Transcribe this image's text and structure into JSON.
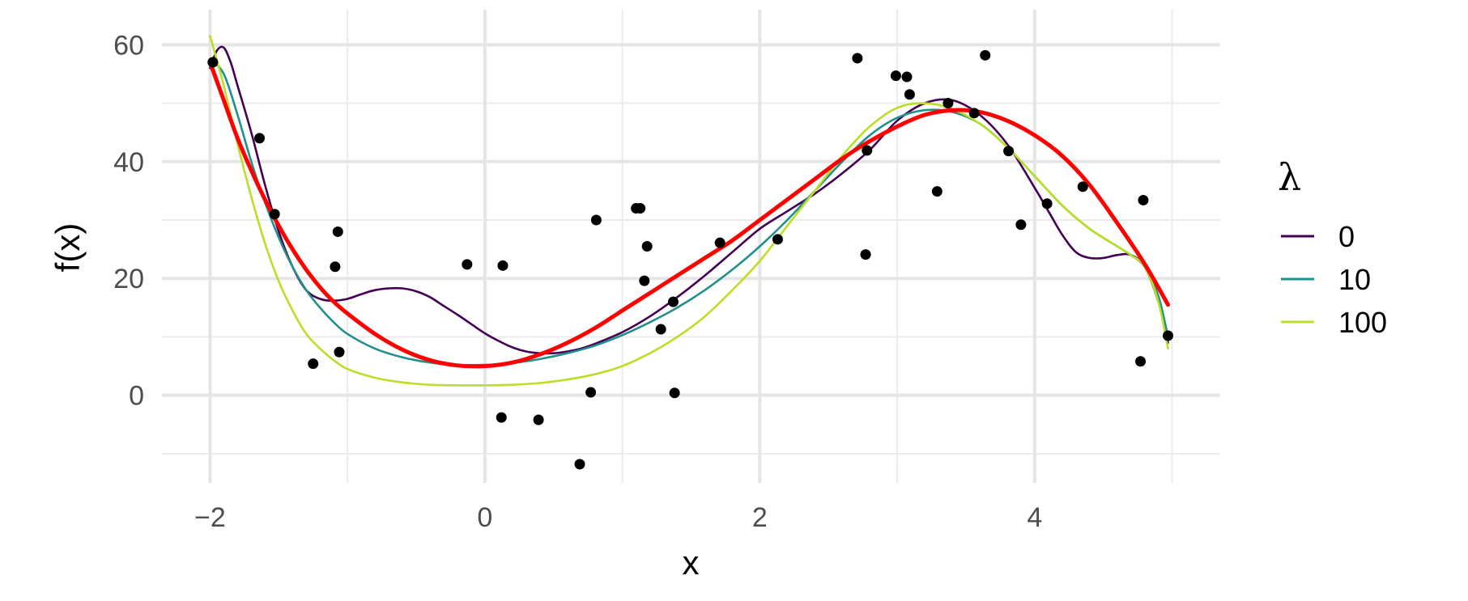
{
  "chart_data": {
    "type": "scatter",
    "title": "",
    "xlabel": "x",
    "ylabel": "f(x)",
    "xlim": [
      -2.35,
      5.35
    ],
    "ylim": [
      -15,
      66
    ],
    "x_ticks": [
      -2,
      0,
      2,
      4
    ],
    "x_tick_labels": [
      "−2",
      "0",
      "2",
      "4"
    ],
    "y_ticks": [
      0,
      20,
      40,
      60
    ],
    "y_tick_labels": [
      "0",
      "20",
      "40",
      "60"
    ],
    "grid": true,
    "legend": {
      "title": "λ",
      "placement": "right",
      "entries": [
        {
          "label": "0",
          "color": "#440154"
        },
        {
          "label": "10",
          "color": "#21908C"
        },
        {
          "label": "100",
          "color": "#BBDF27"
        }
      ]
    },
    "points": {
      "x": [
        -1.98,
        -1.64,
        -1.53,
        -1.25,
        -1.09,
        -1.07,
        -1.06,
        -0.13,
        0.12,
        0.13,
        0.39,
        0.69,
        0.77,
        0.81,
        1.1,
        1.13,
        1.16,
        1.18,
        1.28,
        1.37,
        1.38,
        1.71,
        2.13,
        2.71,
        2.77,
        2.78,
        2.99,
        3.07,
        3.09,
        3.29,
        3.37,
        3.56,
        3.64,
        3.81,
        3.9,
        4.09,
        4.35,
        4.77,
        4.79,
        4.97
      ],
      "y": [
        57,
        44,
        31,
        5.4,
        22,
        28,
        7.4,
        22.4,
        -3.8,
        22.2,
        -4.2,
        -11.8,
        0.5,
        30,
        32,
        32,
        19.6,
        25.5,
        11.3,
        16,
        0.4,
        26.1,
        26.7,
        57.7,
        24.1,
        41.9,
        54.7,
        54.5,
        51.5,
        34.9,
        50,
        48.3,
        58.2,
        41.8,
        29.2,
        32.8,
        35.7,
        5.8,
        33.4,
        10.2
      ]
    },
    "series": [
      {
        "name": "0",
        "color": "#440154",
        "x": [
          -2.0,
          -1.95,
          -1.9,
          -1.85,
          -1.8,
          -1.7,
          -1.6,
          -1.5,
          -1.4,
          -1.3,
          -1.2,
          -1.1,
          -1.0,
          -0.9,
          -0.8,
          -0.7,
          -0.6,
          -0.5,
          -0.4,
          -0.3,
          -0.2,
          -0.1,
          0.0,
          0.1,
          0.2,
          0.3,
          0.4,
          0.5,
          0.6,
          0.7,
          0.8,
          1.0,
          1.2,
          1.4,
          1.6,
          1.8,
          2.0,
          2.2,
          2.4,
          2.6,
          2.8,
          3.0,
          3.2,
          3.4,
          3.6,
          3.8,
          4.0,
          4.1,
          4.2,
          4.3,
          4.4,
          4.5,
          4.6,
          4.7,
          4.8,
          4.9,
          4.97
        ],
        "y": [
          56,
          59,
          59.5,
          57,
          53,
          45,
          36,
          28,
          22,
          18,
          16.5,
          16.2,
          16.5,
          17.3,
          18,
          18.3,
          18.3,
          17.8,
          16.8,
          15.3,
          13.8,
          12.2,
          10.6,
          9.3,
          8.2,
          7.5,
          7.2,
          7.2,
          7.5,
          8,
          8.8,
          10.8,
          13.5,
          16.8,
          20.5,
          24.5,
          28.5,
          31.5,
          34.5,
          38,
          42,
          47,
          50,
          50.5,
          48,
          43,
          35.5,
          31.5,
          27.5,
          24.5,
          23.5,
          23.5,
          24,
          24,
          22,
          16,
          9
        ]
      },
      {
        "name": "10",
        "color": "#21908C",
        "x": [
          -2.0,
          -1.9,
          -1.8,
          -1.7,
          -1.6,
          -1.5,
          -1.4,
          -1.3,
          -1.2,
          -1.1,
          -1.0,
          -0.8,
          -0.6,
          -0.4,
          -0.2,
          0.0,
          0.2,
          0.4,
          0.6,
          0.8,
          1.0,
          1.2,
          1.4,
          1.6,
          1.8,
          2.0,
          2.2,
          2.4,
          2.6,
          2.8,
          3.0,
          3.2,
          3.4,
          3.6,
          3.8,
          4.0,
          4.2,
          4.4,
          4.6,
          4.7,
          4.8,
          4.9,
          4.97
        ],
        "y": [
          57.5,
          55,
          48,
          40,
          33,
          27,
          22,
          18,
          15,
          12.5,
          10.5,
          8,
          6.5,
          5.6,
          5.2,
          5.2,
          5.5,
          6.2,
          7.2,
          8.5,
          10.3,
          12.5,
          15,
          18,
          21.5,
          25.5,
          30,
          35,
          40,
          44.5,
          47.5,
          48.8,
          48.5,
          46.5,
          42.5,
          37.5,
          32.5,
          28.5,
          25.5,
          24,
          22,
          17,
          10
        ]
      },
      {
        "name": "100",
        "color": "#BBDF27",
        "x": [
          -2.0,
          -1.9,
          -1.8,
          -1.7,
          -1.6,
          -1.5,
          -1.4,
          -1.3,
          -1.2,
          -1.1,
          -1.0,
          -0.8,
          -0.6,
          -0.4,
          -0.2,
          0.0,
          0.2,
          0.4,
          0.6,
          0.8,
          1.0,
          1.2,
          1.4,
          1.6,
          1.8,
          2.0,
          2.2,
          2.4,
          2.6,
          2.8,
          3.0,
          3.2,
          3.4,
          3.6,
          3.8,
          4.0,
          4.2,
          4.4,
          4.6,
          4.7,
          4.8,
          4.9,
          4.97
        ],
        "y": [
          61.5,
          53,
          43,
          34,
          26,
          19.5,
          14.5,
          10.5,
          8,
          6,
          4.5,
          3,
          2.2,
          1.8,
          1.7,
          1.7,
          1.8,
          2.1,
          2.7,
          3.6,
          5,
          7.2,
          10,
          13.5,
          18,
          23,
          29,
          35,
          41,
          46,
          49.2,
          50,
          49,
          46.5,
          42.5,
          37.5,
          32.5,
          28.5,
          25.5,
          24,
          22,
          16,
          8
        ]
      },
      {
        "name": "",
        "color": "#FF0000",
        "x": [
          -2.0,
          -1.9,
          -1.8,
          -1.7,
          -1.6,
          -1.5,
          -1.4,
          -1.3,
          -1.2,
          -1.1,
          -1.0,
          -0.8,
          -0.6,
          -0.4,
          -0.2,
          0.0,
          0.2,
          0.4,
          0.6,
          0.8,
          1.0,
          1.2,
          1.4,
          1.6,
          1.8,
          2.0,
          2.2,
          2.4,
          2.6,
          2.8,
          3.0,
          3.2,
          3.4,
          3.6,
          3.8,
          4.0,
          4.2,
          4.4,
          4.6,
          4.8,
          4.97
        ],
        "y": [
          57,
          50.5,
          44,
          38.5,
          33.5,
          29,
          25,
          21.5,
          18.5,
          16,
          14,
          10.5,
          7.8,
          6,
          5.1,
          5,
          5.6,
          7,
          9,
          11.5,
          14.5,
          17.5,
          20.5,
          23.5,
          26.5,
          30,
          33.5,
          37,
          40.5,
          43.5,
          46,
          48,
          48.8,
          48.5,
          47,
          44.5,
          41,
          36,
          29.5,
          22.5,
          15.5
        ]
      }
    ]
  }
}
